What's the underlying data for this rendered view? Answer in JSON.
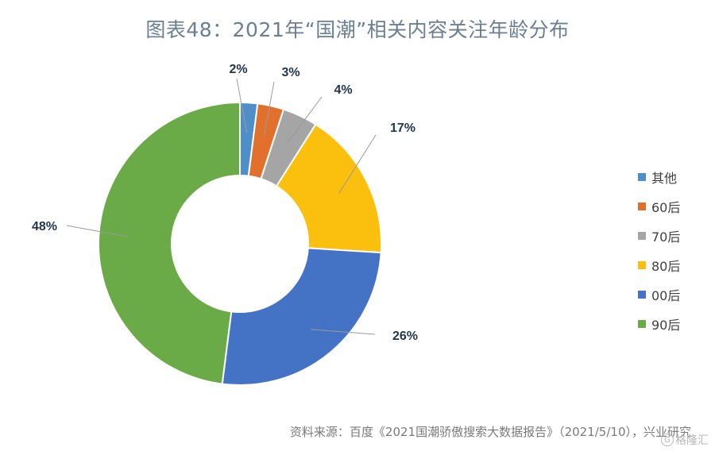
{
  "title": "图表48：2021年“国潮”相关内容关注年龄分布",
  "source": "资料来源：百度《2021国潮骄傲搜索大数据报告》（2021/5/10），兴业研究",
  "watermark": "格隆汇",
  "chart_data": {
    "type": "pie",
    "title": "图表48：2021年“国潮”相关内容关注年龄分布",
    "series": [
      {
        "name": "其他",
        "value": 2,
        "label": "2%",
        "color": "#4f8fc9"
      },
      {
        "name": "60后",
        "value": 3,
        "label": "3%",
        "color": "#e0702c"
      },
      {
        "name": "70后",
        "value": 4,
        "label": "4%",
        "color": "#a5a5a5"
      },
      {
        "name": "80后",
        "value": 17,
        "label": "17%",
        "color": "#fbc00d"
      },
      {
        "name": "00后",
        "value": 26,
        "label": "26%",
        "color": "#4472c4"
      },
      {
        "name": "90后",
        "value": 48,
        "label": "48%",
        "color": "#6aab47"
      }
    ],
    "legend_position": "right"
  }
}
